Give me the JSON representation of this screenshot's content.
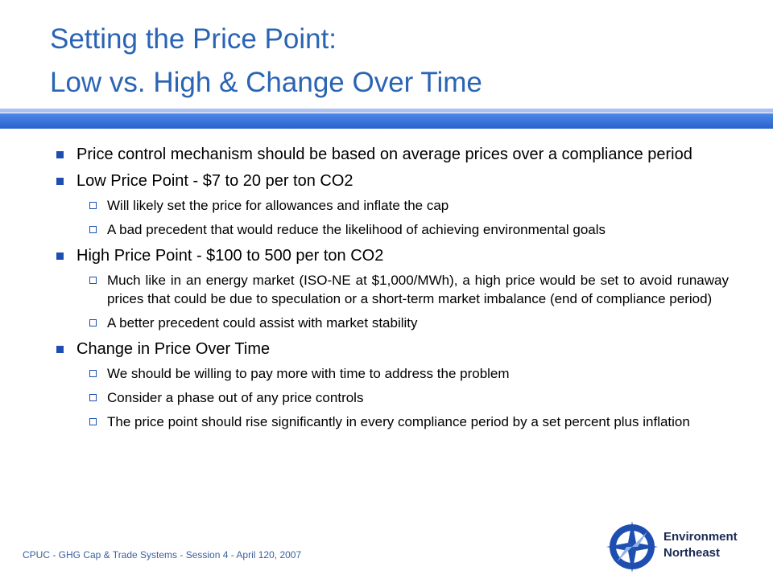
{
  "title": {
    "lines": [
      "Setting the Price Point:",
      "Low vs. High & Change Over Time"
    ]
  },
  "bullets": [
    {
      "text": "Price control mechanism should be based on average prices over a compliance period",
      "subs": []
    },
    {
      "text": "Low Price Point - $7 to 20 per ton CO2",
      "subs": [
        "Will likely set the price for allowances and inflate the cap",
        "A bad precedent that would reduce the likelihood of achieving environmental goals"
      ]
    },
    {
      "text": "High Price Point - $100 to 500 per ton CO2",
      "subs": [
        "Much like in an energy market (ISO-NE at $1,000/MWh), a high price would be set to avoid runaway prices that could be due to speculation or a short-term market imbalance (end of compliance period)",
        "A better precedent could assist with market stability"
      ]
    },
    {
      "text": "Change in Price Over Time",
      "subs": [
        "We should be willing to pay more with time to address the problem",
        "Consider a phase out of any price controls",
        "The price point should rise significantly in every compliance period by a set percent plus inflation"
      ]
    }
  ],
  "footer": "CPUC - GHG Cap & Trade Systems - Session 4 - April 120, 2007",
  "logo": {
    "line1": "Environment",
    "line2": "Northeast"
  }
}
